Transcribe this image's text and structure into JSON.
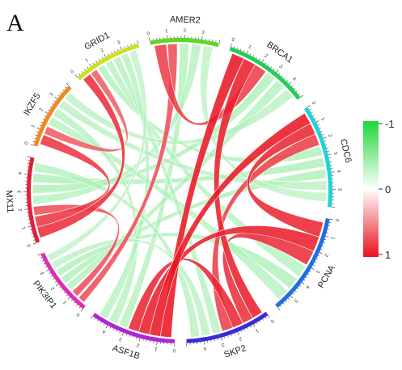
{
  "panel_label": "A",
  "segments": [
    {
      "name": "GRID1",
      "color": "#cce01f",
      "ticks": [
        "0",
        "1",
        "2",
        "3"
      ]
    },
    {
      "name": "AMER2",
      "color": "#5ed62a",
      "ticks": [
        "0",
        "1",
        "2",
        "3"
      ]
    },
    {
      "name": "BRCA1",
      "color": "#1fcf57",
      "ticks": [
        "0",
        "1",
        "2",
        "3",
        "4"
      ]
    },
    {
      "name": "CDC6",
      "color": "#1fd3d6",
      "ticks": [
        "0",
        "1",
        "2",
        "3",
        "4",
        "5"
      ]
    },
    {
      "name": "PCNA",
      "color": "#1f6fe0",
      "ticks": [
        "0",
        "1",
        "2",
        "3",
        "4",
        "5"
      ]
    },
    {
      "name": "SKP2",
      "color": "#3a2bd6",
      "ticks": [
        "0",
        "1",
        "2",
        "3",
        "4"
      ]
    },
    {
      "name": "ASF1B",
      "color": "#b024d6",
      "ticks": [
        "0",
        "1",
        "2",
        "3",
        "4"
      ]
    },
    {
      "name": "PIK3IP1",
      "color": "#e02cb4",
      "ticks": [
        "0",
        "1",
        "2",
        "3"
      ]
    },
    {
      "name": "MX11",
      "color": "#e01f3c",
      "ticks": [
        "0",
        "1",
        "2",
        "3",
        "4"
      ]
    },
    {
      "name": "IKZF5",
      "color": "#f08a1f",
      "ticks": [
        "0",
        "1",
        "2",
        "3"
      ]
    }
  ],
  "links": [
    {
      "from": "BRCA1",
      "to": "ASF1B",
      "value": 0.95
    },
    {
      "from": "BRCA1",
      "to": "SKP2",
      "value": 0.9
    },
    {
      "from": "CDC6",
      "to": "ASF1B",
      "value": 0.95
    },
    {
      "from": "CDC6",
      "to": "PCNA",
      "value": 0.85
    },
    {
      "from": "PCNA",
      "to": "ASF1B",
      "value": 0.9
    },
    {
      "from": "PCNA",
      "to": "SKP2",
      "value": 0.8
    },
    {
      "from": "SKP2",
      "to": "ASF1B",
      "value": 0.85
    },
    {
      "from": "AMER2",
      "to": "BRCA1",
      "value": 0.7
    },
    {
      "from": "AMER2",
      "to": "PIK3IP1",
      "value": 0.6
    },
    {
      "from": "GRID1",
      "to": "MX11",
      "value": 0.8
    },
    {
      "from": "IKZF5",
      "to": "MX11",
      "value": 0.75
    },
    {
      "from": "IKZF5",
      "to": "GRID1",
      "value": 0.5
    },
    {
      "from": "MX11",
      "to": "PIK3IP1",
      "value": 0.6
    },
    {
      "from": "CDC6",
      "to": "SKP2",
      "value": 0.7
    },
    {
      "from": "GRID1",
      "to": "CDC6",
      "value": -0.6
    },
    {
      "from": "GRID1",
      "to": "PCNA",
      "value": -0.5
    },
    {
      "from": "AMER2",
      "to": "ASF1B",
      "value": -0.55
    },
    {
      "from": "AMER2",
      "to": "MX11",
      "value": -0.5
    },
    {
      "from": "BRCA1",
      "to": "MX11",
      "value": -0.6
    },
    {
      "from": "BRCA1",
      "to": "PIK3IP1",
      "value": -0.55
    },
    {
      "from": "CDC6",
      "to": "MX11",
      "value": -0.65
    },
    {
      "from": "CDC6",
      "to": "PIK3IP1",
      "value": -0.6
    },
    {
      "from": "PCNA",
      "to": "PIK3IP1",
      "value": -0.6
    },
    {
      "from": "PCNA",
      "to": "IKZF5",
      "value": -0.5
    },
    {
      "from": "SKP2",
      "to": "GRID1",
      "value": -0.5
    },
    {
      "from": "SKP2",
      "to": "PIK3IP1",
      "value": -0.45
    },
    {
      "from": "ASF1B",
      "to": "IKZF5",
      "value": -0.5
    },
    {
      "from": "ASF1B",
      "to": "GRID1",
      "value": -0.5
    },
    {
      "from": "IKZF5",
      "to": "CDC6",
      "value": -0.45
    },
    {
      "from": "PIK3IP1",
      "to": "GRID1",
      "value": -0.4
    },
    {
      "from": "MX11",
      "to": "SKP2",
      "value": -0.5
    },
    {
      "from": "AMER2",
      "to": "CDC6",
      "value": -0.4
    },
    {
      "from": "BRCA1",
      "to": "IKZF5",
      "value": -0.45
    }
  ],
  "legend": {
    "labels": [
      "-1",
      "0",
      "1"
    ],
    "colors": {
      "negative": "#1fd63a",
      "zero": "#ffffff",
      "positive": "#e8101e"
    }
  }
}
